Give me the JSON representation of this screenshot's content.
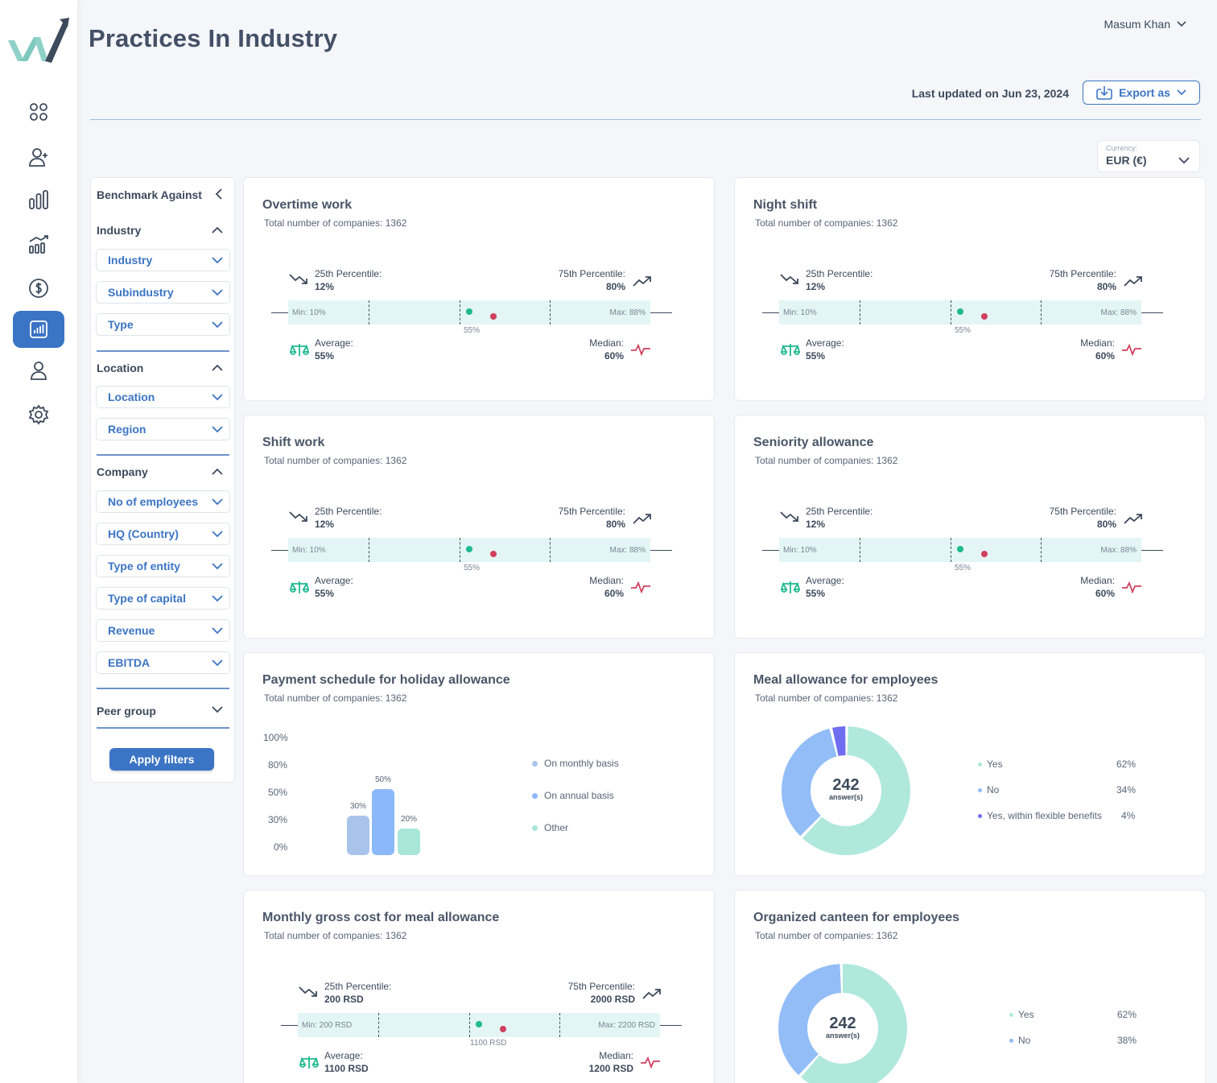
{
  "header": {
    "title": "Practices In Industry",
    "user": "Masum Khan",
    "last_updated": "Last updated on Jun 23, 2024",
    "export_label": "Export as"
  },
  "currency": {
    "label": "Currency:",
    "value": "EUR (€)"
  },
  "filters": {
    "benchmark": "Benchmark Against",
    "industry_head": "Industry",
    "industry": "Industry",
    "subindustry": "Subindustry",
    "type": "Type",
    "location_head": "Location",
    "location": "Location",
    "region": "Region",
    "company_head": "Company",
    "employees": "No of employees",
    "hq": "HQ (Country)",
    "entity": "Type of entity",
    "capital": "Type of capital",
    "revenue": "Revenue",
    "ebitda": "EBITDA",
    "peer": "Peer group",
    "apply": "Apply filters"
  },
  "cards": {
    "overtime": {
      "title": "Overtime work",
      "sub": "Total number of companies: 1362",
      "p25_label": "25th Percentile:",
      "p25": "12%",
      "p75_label": "75th Percentile:",
      "p75": "80%",
      "min": "Min: 10%",
      "max": "Max: 88%",
      "mid": "55%",
      "avg_label": "Average:",
      "avg": "55%",
      "med_label": "Median:",
      "med": "60%"
    },
    "night": {
      "title": "Night shift",
      "sub": "Total number of companies: 1362",
      "p25_label": "25th Percentile:",
      "p25": "12%",
      "p75_label": "75th Percentile:",
      "p75": "80%",
      "min": "Min: 10%",
      "max": "Max: 88%",
      "mid": "55%",
      "avg_label": "Average:",
      "avg": "55%",
      "med_label": "Median:",
      "med": "60%"
    },
    "shift": {
      "title": "Shift work",
      "sub": "Total number of companies: 1362",
      "p25_label": "25th Percentile:",
      "p25": "12%",
      "p75_label": "75th Percentile:",
      "p75": "80%",
      "min": "Min: 10%",
      "max": "Max: 88%",
      "mid": "55%",
      "avg_label": "Average:",
      "avg": "55%",
      "med_label": "Median:",
      "med": "60%"
    },
    "seniority": {
      "title": "Seniority allowance",
      "sub": "Total number of companies: 1362",
      "p25_label": "25th Percentile:",
      "p25": "12%",
      "p75_label": "75th Percentile:",
      "p75": "80%",
      "min": "Min: 10%",
      "max": "Max: 88%",
      "mid": "55%",
      "avg_label": "Average:",
      "avg": "55%",
      "med_label": "Median:",
      "med": "60%"
    },
    "holiday": {
      "title": "Payment schedule for holiday allowance",
      "sub": "Total number of companies: 1362",
      "yticks": [
        "100%",
        "80%",
        "50%",
        "30%",
        "0%"
      ],
      "bars": [
        {
          "label": "30%",
          "value": 30,
          "color": "#a9c4ea"
        },
        {
          "label": "50%",
          "value": 50,
          "color": "#8ab8f9"
        },
        {
          "label": "20%",
          "value": 20,
          "color": "#a8e6da"
        }
      ],
      "legend": [
        {
          "label": "On monthly basis",
          "color": "#a9c4ea"
        },
        {
          "label": "On annual basis",
          "color": "#8ab8f9"
        },
        {
          "label": "Other",
          "color": "#a8e6da"
        }
      ]
    },
    "meal": {
      "title": "Meal allowance for employees",
      "sub": "Total number of companies: 1362",
      "center_num": "242",
      "center_txt": "answer(s)",
      "segments": [
        {
          "label": "Yes",
          "pct": "62%",
          "value": 62,
          "color": "#b0e8dc"
        },
        {
          "label": "No",
          "pct": "34%",
          "value": 34,
          "color": "#92bdf7"
        },
        {
          "label": "Yes, within flexible benefits",
          "pct": "4%",
          "value": 4,
          "color": "#6f6df0"
        }
      ]
    },
    "mealcost": {
      "title": "Monthly gross cost for meal allowance",
      "sub": "Total number of companies: 1362",
      "p25_label": "25th Percentile:",
      "p25": "200 RSD",
      "p75_label": "75th Percentile:",
      "p75": "2000 RSD",
      "min": "Min: 200 RSD",
      "max": "Max: 2200 RSD",
      "mid": "1100 RSD",
      "avg_label": "Average:",
      "avg": "1100 RSD",
      "med_label": "Median:",
      "med": "1200 RSD"
    },
    "canteen": {
      "title": "Organized canteen for employees",
      "sub": "Total number of companies: 1362",
      "center_num": "242",
      "center_txt": "answer(s)",
      "segments": [
        {
          "label": "Yes",
          "pct": "62%",
          "value": 62,
          "color": "#b0e8dc"
        },
        {
          "label": "No",
          "pct": "38%",
          "value": 38,
          "color": "#92bdf7"
        }
      ]
    }
  },
  "chart_data": [
    {
      "type": "bar",
      "title": "Payment schedule for holiday allowance",
      "categories": [
        "On monthly basis",
        "On annual basis",
        "Other"
      ],
      "values": [
        30,
        50,
        20
      ],
      "ylim": [
        0,
        100
      ]
    },
    {
      "type": "pie",
      "title": "Meal allowance for employees",
      "categories": [
        "Yes",
        "No",
        "Yes, within flexible benefits"
      ],
      "values": [
        62,
        34,
        4
      ]
    },
    {
      "type": "pie",
      "title": "Organized canteen for employees",
      "categories": [
        "Yes",
        "No"
      ],
      "values": [
        62,
        38
      ]
    }
  ]
}
